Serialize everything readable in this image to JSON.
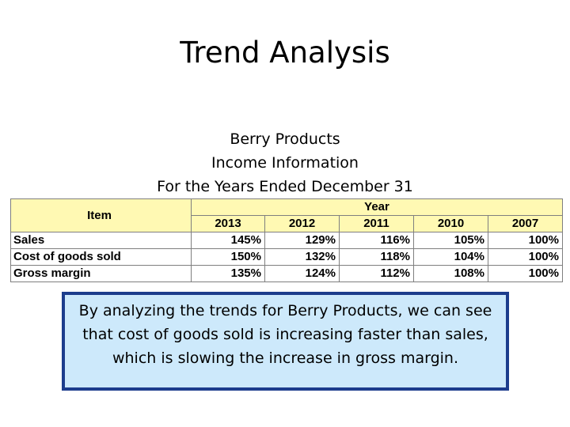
{
  "title": "Trend Analysis",
  "subtitle": {
    "line1": "Berry Products",
    "line2": "Income Information",
    "line3": "For the Years Ended December 31"
  },
  "table": {
    "item_header": "Item",
    "year_header": "Year",
    "years": [
      "2013",
      "2012",
      "2011",
      "2010",
      "2007"
    ],
    "rows": [
      {
        "label": "Sales",
        "values": [
          "145%",
          "129%",
          "116%",
          "105%",
          "100%"
        ]
      },
      {
        "label": "Cost of goods sold",
        "values": [
          "150%",
          "132%",
          "118%",
          "104%",
          "100%"
        ]
      },
      {
        "label": "Gross margin",
        "values": [
          "135%",
          "124%",
          "112%",
          "108%",
          "100%"
        ]
      }
    ]
  },
  "note": {
    "line1": "By analyzing the trends for Berry Products, we can see",
    "line2": "that cost of goods sold is increasing faster than sales,",
    "line3": "which is slowing the increase in gross margin."
  },
  "colors": {
    "header_fill": "#fff9b3",
    "note_fill": "#cde9fb",
    "note_border": "#1c3c8c"
  }
}
